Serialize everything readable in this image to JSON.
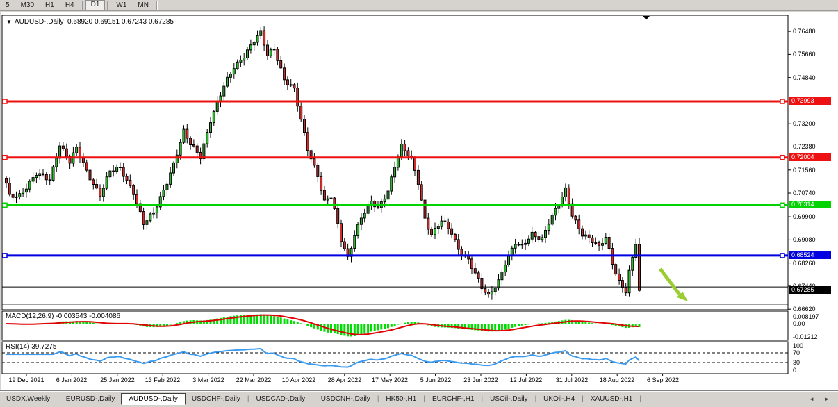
{
  "toolbar": {
    "timeframe_groups": [
      [
        "5",
        "M30",
        "H1",
        "H4"
      ],
      [
        "D1"
      ],
      [
        "W1",
        "MN"
      ]
    ],
    "active_timeframe": "D1"
  },
  "chart": {
    "dropdown_marker": "▼",
    "symbol_label": "AUDUSD-,Daily",
    "ohlc_text": "0.68920 0.69151 0.67243 0.67285"
  },
  "price_axis": {
    "ticks": [
      0.7648,
      0.7566,
      0.7484,
      0.732,
      0.7238,
      0.7156,
      0.7074,
      0.699,
      0.6908,
      0.6826,
      0.6744,
      0.6662
    ],
    "decimals": 5
  },
  "macd_panel": {
    "name": "MACD(12,26,9)",
    "values_text": "-0.003543 -0.004086",
    "axis_labels": [
      "0.008197",
      "0.00",
      "-0.01212"
    ]
  },
  "rsi_panel": {
    "name": "RSI(14)",
    "value_text": "39.7275",
    "axis_labels": [
      "100",
      "70",
      "30",
      "0"
    ]
  },
  "date_axis": [
    "19 Dec 2021",
    "6 Jan 2022",
    "25 Jan 2022",
    "13 Feb 2022",
    "3 Mar 2022",
    "22 Mar 2022",
    "10 Apr 2022",
    "28 Apr 2022",
    "17 May 2022",
    "5 Jun 2022",
    "23 Jun 2022",
    "12 Jul 2022",
    "31 Jul 2022",
    "18 Aug 2022",
    "6 Sep 2022"
  ],
  "tabs": {
    "items": [
      "USDX,Weekly",
      "EURUSD-,Daily",
      "AUDUSD-,Daily",
      "USDCHF-,Daily",
      "USDCAD-,Daily",
      "USDCNH-,Daily",
      "HK50-,H1",
      "EURCHF-,H1",
      "USOil-,Daily",
      "UKOil-,H4",
      "XAUUSD-,H1"
    ],
    "active_index": 2,
    "left_arrow": "◄",
    "right_arrow": "►"
  },
  "colors": {
    "bull": "#2db92d",
    "bear": "#cf2e2e",
    "wick": "#000000",
    "macd_hist": "#00dd00",
    "macd_signal": "#e00000",
    "rsi_line": "#3a9af0",
    "arrow": "#9acd32",
    "current_price_bg": "#000000"
  },
  "chart_data": {
    "type": "candlestick",
    "symbol": "AUDUSD",
    "timeframe": "Daily",
    "title": "AUDUSD-,Daily  0.68920 0.69151 0.67243 0.67285",
    "visible_price_range": {
      "min": 0.666,
      "max": 0.7705
    },
    "candle_count": 190,
    "last_candle": {
      "open": 0.6892,
      "high": 0.69151,
      "low": 0.67243,
      "close": 0.67285
    },
    "price_path_keyframes": [
      [
        0,
        0.7105
      ],
      [
        1,
        0.706
      ],
      [
        4,
        0.707
      ],
      [
        9,
        0.714
      ],
      [
        13,
        0.712
      ],
      [
        16,
        0.725
      ],
      [
        19,
        0.7185
      ],
      [
        21,
        0.723
      ],
      [
        24,
        0.715
      ],
      [
        28,
        0.707
      ],
      [
        31,
        0.715
      ],
      [
        34,
        0.716
      ],
      [
        38,
        0.708
      ],
      [
        41,
        0.6965
      ],
      [
        44,
        0.7
      ],
      [
        47,
        0.7085
      ],
      [
        50,
        0.718
      ],
      [
        53,
        0.729
      ],
      [
        55,
        0.7245
      ],
      [
        58,
        0.7205
      ],
      [
        61,
        0.7335
      ],
      [
        65,
        0.745
      ],
      [
        68,
        0.752
      ],
      [
        71,
        0.7565
      ],
      [
        74,
        0.7615
      ],
      [
        76,
        0.764
      ],
      [
        78,
        0.756
      ],
      [
        80,
        0.759
      ],
      [
        83,
        0.748
      ],
      [
        86,
        0.744
      ],
      [
        88,
        0.733
      ],
      [
        90,
        0.723
      ],
      [
        93,
        0.714
      ],
      [
        95,
        0.7045
      ],
      [
        97,
        0.706
      ],
      [
        98,
        0.701
      ],
      [
        100,
        0.6905
      ],
      [
        102,
        0.6845
      ],
      [
        104,
        0.693
      ],
      [
        106,
        0.699
      ],
      [
        109,
        0.704
      ],
      [
        111,
        0.7015
      ],
      [
        114,
        0.7085
      ],
      [
        116,
        0.7175
      ],
      [
        118,
        0.724
      ],
      [
        121,
        0.719
      ],
      [
        123,
        0.711
      ],
      [
        125,
        0.6985
      ],
      [
        127,
        0.693
      ],
      [
        130,
        0.6975
      ],
      [
        133,
        0.693
      ],
      [
        135,
        0.6875
      ],
      [
        138,
        0.684
      ],
      [
        140,
        0.679
      ],
      [
        142,
        0.6735
      ],
      [
        144,
        0.6705
      ],
      [
        147,
        0.6765
      ],
      [
        149,
        0.683
      ],
      [
        152,
        0.6895
      ],
      [
        154,
        0.688
      ],
      [
        157,
        0.693
      ],
      [
        160,
        0.6915
      ],
      [
        162,
        0.697
      ],
      [
        165,
        0.703
      ],
      [
        167,
        0.7085
      ],
      [
        169,
        0.7
      ],
      [
        172,
        0.693
      ],
      [
        175,
        0.69
      ],
      [
        177,
        0.688
      ],
      [
        179,
        0.692
      ],
      [
        181,
        0.683
      ],
      [
        183,
        0.676
      ],
      [
        185,
        0.672
      ],
      [
        186,
        0.68
      ],
      [
        188,
        0.6892
      ],
      [
        189,
        0.67285
      ]
    ],
    "horizontal_lines": [
      {
        "price": 0.73993,
        "color": "#ee1111",
        "width": 3,
        "label": "0.73993",
        "markers": true
      },
      {
        "price": 0.72004,
        "color": "#ee1111",
        "width": 3,
        "label": "0.72004",
        "markers": true
      },
      {
        "price": 0.70314,
        "color": "#00d300",
        "width": 3,
        "label": "0.70314",
        "markers": true
      },
      {
        "price": 0.68524,
        "color": "#0000e0",
        "width": 3,
        "label": "0.68524",
        "markers": true
      },
      {
        "price": 0.6741,
        "color": "#000000",
        "width": 1,
        "label": null,
        "markers": false
      },
      {
        "price": 0.668,
        "color": "#000000",
        "width": 1,
        "label": null,
        "markers": false
      }
    ],
    "current_price": {
      "value": 0.67285,
      "label": "0.67285"
    },
    "indicators": {
      "macd": {
        "params": [
          12,
          26,
          9
        ],
        "current_main": -0.003543,
        "current_signal": -0.004086,
        "axis_max": 0.008197,
        "axis_min": -0.01212
      },
      "rsi": {
        "period": 14,
        "current": 39.7275,
        "levels": [
          70,
          30
        ],
        "axis": [
          100,
          70,
          30,
          0
        ]
      }
    },
    "annotations": [
      {
        "type": "arrow",
        "direction": "down-right",
        "color": "#9acd32"
      }
    ]
  }
}
